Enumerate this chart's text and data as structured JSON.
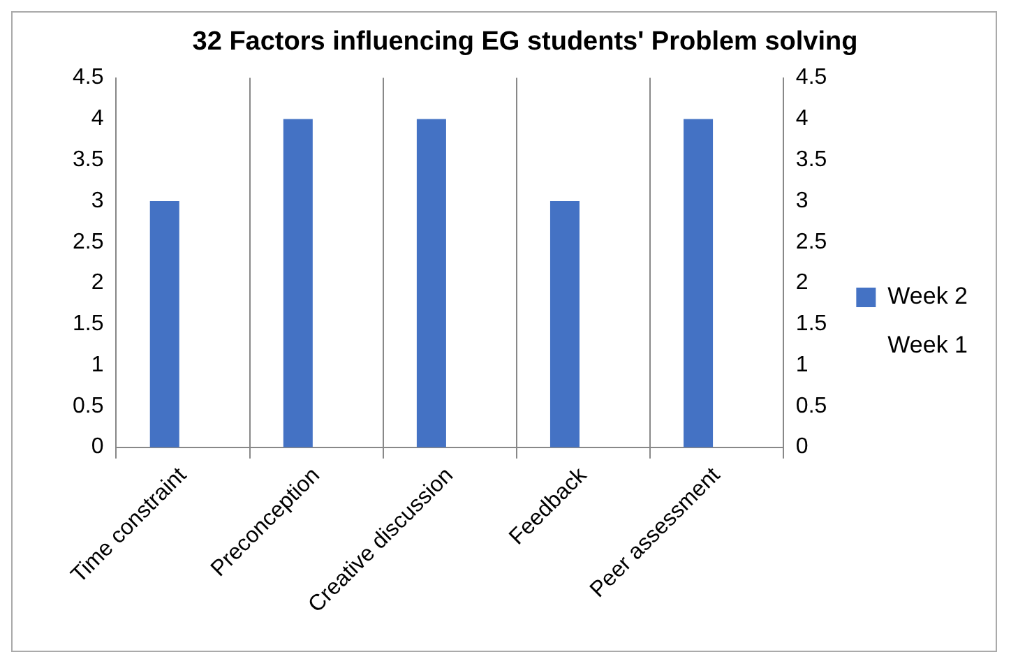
{
  "chart_data": {
    "type": "bar",
    "title": "32 Factors influencing EG students' Problem solving",
    "categories": [
      "Time constraint",
      "Preconception",
      "Creative discussion",
      "Feedback",
      "Peer assessment"
    ],
    "series": [
      {
        "name": "Week 2",
        "color": "#4472c4",
        "values": [
          3,
          4,
          4,
          3,
          4
        ]
      },
      {
        "name": "Week 1",
        "values": [
          null,
          null,
          null,
          null,
          null
        ]
      }
    ],
    "ylim": [
      0,
      4.5
    ],
    "yticks": [
      0,
      0.5,
      1,
      1.5,
      2,
      2.5,
      3,
      3.5,
      4,
      4.5
    ],
    "y2lim": [
      0,
      4.5
    ],
    "y2ticks": [
      0,
      0.5,
      1,
      1.5,
      2,
      2.5,
      3,
      3.5,
      4,
      4.5
    ],
    "grid": "x",
    "legend": "right"
  }
}
